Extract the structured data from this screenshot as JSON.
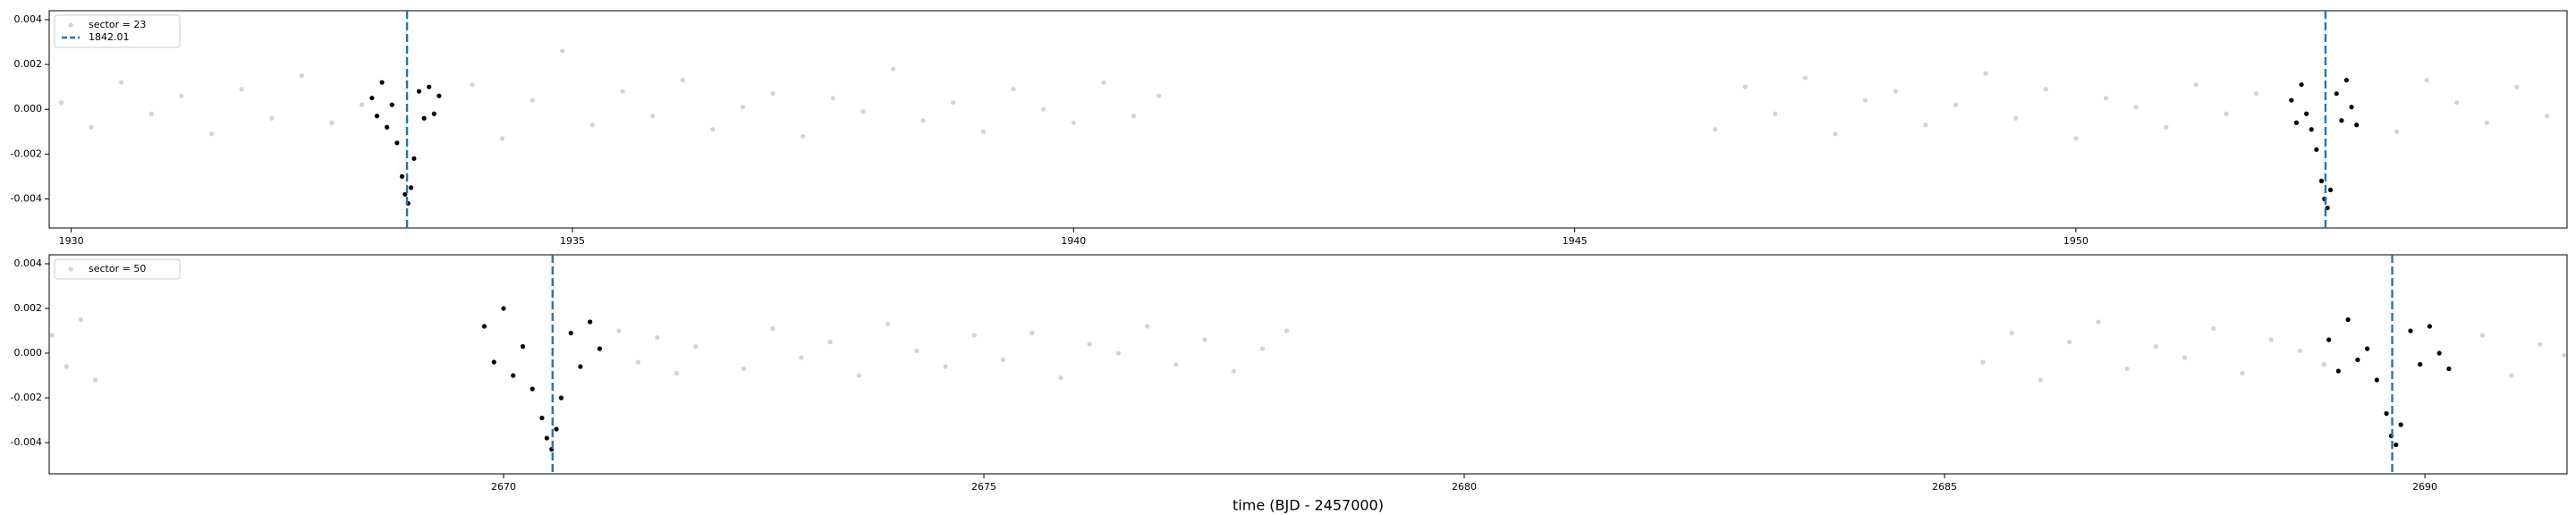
{
  "chart_data": [
    {
      "type": "scatter",
      "xlim": [
        1929.78,
        1954.9
      ],
      "ylim": [
        -0.0053,
        0.0044
      ],
      "xticks": [
        1930,
        1935,
        1940,
        1945,
        1950
      ],
      "yticks": [
        0.004,
        0.002,
        {
          "value": 0,
          "label": "0.000"
        },
        -0.002,
        -0.004
      ],
      "series": [
        {
          "name": "sector = 23",
          "color": "#d3d3d3",
          "x": [
            1929.9,
            1930.2,
            1930.5,
            1930.8,
            1931.1,
            1931.4,
            1931.7,
            1932.0,
            1932.3,
            1932.6,
            1932.9,
            1934.0,
            1934.3,
            1934.6,
            1934.9,
            1935.2,
            1935.5,
            1935.8,
            1936.1,
            1936.4,
            1936.7,
            1937.0,
            1937.3,
            1937.6,
            1937.9,
            1938.2,
            1938.5,
            1938.8,
            1939.1,
            1939.4,
            1939.7,
            1940.0,
            1940.3,
            1940.6,
            1940.85,
            1946.4,
            1946.7,
            1947.0,
            1947.3,
            1947.6,
            1947.9,
            1948.2,
            1948.5,
            1948.8,
            1949.1,
            1949.4,
            1949.7,
            1950.0,
            1950.3,
            1950.6,
            1950.9,
            1951.2,
            1951.5,
            1951.8,
            1953.2,
            1953.5,
            1953.8,
            1954.1,
            1954.4,
            1954.7
          ],
          "values": [
            0.0003,
            -0.0008,
            0.0012,
            -0.0002,
            0.0006,
            -0.0011,
            0.0009,
            -0.0004,
            0.0015,
            -0.0006,
            0.0002,
            0.0011,
            -0.0013,
            0.0004,
            0.0026,
            -0.0007,
            0.0008,
            -0.0003,
            0.0013,
            -0.0009,
            0.0001,
            0.0007,
            -0.0012,
            0.0005,
            -0.0001,
            0.0018,
            -0.0005,
            0.0003,
            -0.001,
            0.0009,
            0,
            -0.0006,
            0.0012,
            -0.0003,
            0.0006,
            -0.0009,
            0.001,
            -0.0002,
            0.0014,
            -0.0011,
            0.0004,
            0.0008,
            -0.0007,
            0.0002,
            0.0016,
            -0.0004,
            0.0009,
            -0.0013,
            0.0005,
            0.0001,
            -0.0008,
            0.0011,
            -0.0002,
            0.0007,
            -0.001,
            0.0013,
            0.0003,
            -0.0006,
            0.001,
            -0.0003
          ]
        },
        {
          "color": "#000000",
          "x": [
            1933.0,
            1933.05,
            1933.1,
            1933.15,
            1933.2,
            1933.25,
            1933.3,
            1933.33,
            1933.36,
            1933.39,
            1933.42,
            1933.47,
            1933.52,
            1933.57,
            1933.62,
            1933.67,
            1952.15,
            1952.2,
            1952.25,
            1952.3,
            1952.35,
            1952.4,
            1952.45,
            1952.48,
            1952.51,
            1952.54,
            1952.6,
            1952.65,
            1952.7,
            1952.75,
            1952.8
          ],
          "values": [
            0.0005,
            -0.0003,
            0.0012,
            -0.0008,
            0.0002,
            -0.0015,
            -0.003,
            -0.0038,
            -0.0042,
            -0.0035,
            -0.0022,
            0.0008,
            -0.0004,
            0.001,
            -0.0002,
            0.0006,
            0.0004,
            -0.0006,
            0.0011,
            -0.0002,
            -0.0009,
            -0.0018,
            -0.0032,
            -0.004,
            -0.0044,
            -0.0036,
            0.0007,
            -0.0005,
            0.0013,
            0.0001,
            -0.0007
          ]
        }
      ],
      "vlines": {
        "name": "1842.01",
        "color": "#1f77b4",
        "x": [
          1933.35,
          1952.49
        ]
      }
    },
    {
      "type": "scatter",
      "xlabel": "time (BJD - 2457000)",
      "xlim": [
        2665.27,
        2691.48
      ],
      "ylim": [
        -0.0054,
        0.0044
      ],
      "xticks": [
        2670,
        2675,
        2680,
        2685,
        2690
      ],
      "yticks": [
        0.004,
        0.002,
        {
          "value": 0,
          "label": "0.000"
        },
        -0.002,
        -0.004
      ],
      "series": [
        {
          "name": "sector = 50",
          "color": "#d3d3d3",
          "x": [
            2665.3,
            2665.45,
            2665.6,
            2665.75,
            2671.2,
            2671.4,
            2671.6,
            2671.8,
            2672.0,
            2672.5,
            2672.8,
            2673.1,
            2673.4,
            2673.7,
            2674.0,
            2674.3,
            2674.6,
            2674.9,
            2675.2,
            2675.5,
            2675.8,
            2676.1,
            2676.4,
            2676.7,
            2677.0,
            2677.3,
            2677.6,
            2677.9,
            2678.15,
            2685.4,
            2685.7,
            2686.0,
            2686.3,
            2686.6,
            2686.9,
            2687.2,
            2687.5,
            2687.8,
            2688.1,
            2688.4,
            2688.7,
            2688.95,
            2690.6,
            2690.9,
            2691.2,
            2691.45
          ],
          "values": [
            0.0008,
            -0.0006,
            0.0015,
            -0.0012,
            0.001,
            -0.0004,
            0.0007,
            -0.0009,
            0.0003,
            -0.0007,
            0.0011,
            -0.0002,
            0.0005,
            -0.001,
            0.0013,
            0.0001,
            -0.0006,
            0.0008,
            -0.0003,
            0.0009,
            -0.0011,
            0.0004,
            0,
            0.0012,
            -0.0005,
            0.0006,
            -0.0008,
            0.0002,
            0.001,
            -0.0004,
            0.0009,
            -0.0012,
            0.0005,
            0.0014,
            -0.0007,
            0.0003,
            -0.0002,
            0.0011,
            -0.0009,
            0.0006,
            0.0001,
            -0.0005,
            0.0008,
            -0.001,
            0.0004,
            -0.0001
          ]
        },
        {
          "color": "#000000",
          "x": [
            2669.8,
            2669.9,
            2670.0,
            2670.1,
            2670.2,
            2670.3,
            2670.4,
            2670.45,
            2670.5,
            2670.55,
            2670.6,
            2670.7,
            2670.8,
            2670.9,
            2671.0,
            2689.0,
            2689.1,
            2689.2,
            2689.3,
            2689.4,
            2689.5,
            2689.6,
            2689.65,
            2689.7,
            2689.75,
            2689.85,
            2689.95,
            2690.05,
            2690.15,
            2690.25
          ],
          "values": [
            0.0012,
            -0.0004,
            0.002,
            -0.001,
            0.0003,
            -0.0016,
            -0.0029,
            -0.0038,
            -0.0043,
            -0.0034,
            -0.002,
            0.0009,
            -0.0006,
            0.0014,
            0.0002,
            0.0006,
            -0.0008,
            0.0015,
            -0.0003,
            0.0002,
            -0.0012,
            -0.0027,
            -0.0037,
            -0.0041,
            -0.0032,
            0.001,
            -0.0005,
            0.0012,
            0,
            -0.0007
          ]
        }
      ],
      "vlines": {
        "color": "#1f77b4",
        "x": [
          2670.51,
          2689.66
        ]
      }
    }
  ]
}
